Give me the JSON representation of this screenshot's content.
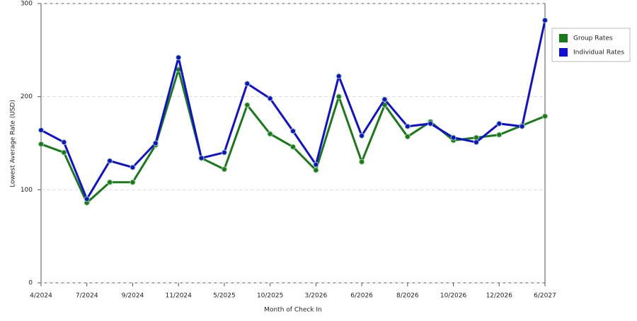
{
  "chart_data": {
    "type": "line",
    "x_label": "Month of Check In",
    "y_label": "Lowest Average Rate (USD)",
    "categories": [
      "4/2024",
      null,
      "7/2024",
      null,
      "9/2024",
      null,
      "11/2024",
      null,
      "5/2025",
      null,
      "10/2025",
      null,
      "3/2026",
      null,
      "6/2026",
      null,
      "8/2026",
      null,
      "10/2026",
      null,
      "12/2026",
      null,
      "6/2027"
    ],
    "series": [
      {
        "name": "Group Rates",
        "color": "#1a7a1a",
        "values": [
          149,
          140,
          86,
          108,
          108,
          148,
          229,
          134,
          122,
          191,
          160,
          146,
          121,
          200,
          130,
          191,
          157,
          173,
          153,
          156,
          159,
          169,
          179
        ]
      },
      {
        "name": "Individual Rates",
        "color": "#1010d0",
        "values": [
          164,
          151,
          90,
          131,
          124,
          150,
          242,
          134,
          140,
          214,
          198,
          163,
          127,
          222,
          158,
          197,
          168,
          171,
          156,
          151,
          171,
          168,
          282
        ]
      }
    ],
    "ylim": [
      0,
      300
    ],
    "yticks": [
      0,
      100,
      200,
      300
    ],
    "grid": true,
    "legend": "right"
  }
}
